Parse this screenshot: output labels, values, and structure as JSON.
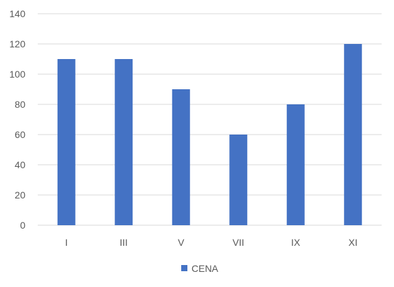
{
  "chart_data": {
    "type": "bar",
    "categories": [
      "I",
      "III",
      "V",
      "VII",
      "IX",
      "XI"
    ],
    "series": [
      {
        "name": "CENA",
        "values": [
          110,
          110,
          90,
          60,
          80,
          120
        ],
        "color": "#4472C4"
      }
    ],
    "ylim": [
      0,
      140
    ],
    "yticks": [
      0,
      20,
      40,
      60,
      80,
      100,
      120,
      140
    ],
    "grid": true,
    "legend_position": "bottom-center",
    "gridline_color": "#D9D9D9",
    "label_color": "#595959"
  }
}
